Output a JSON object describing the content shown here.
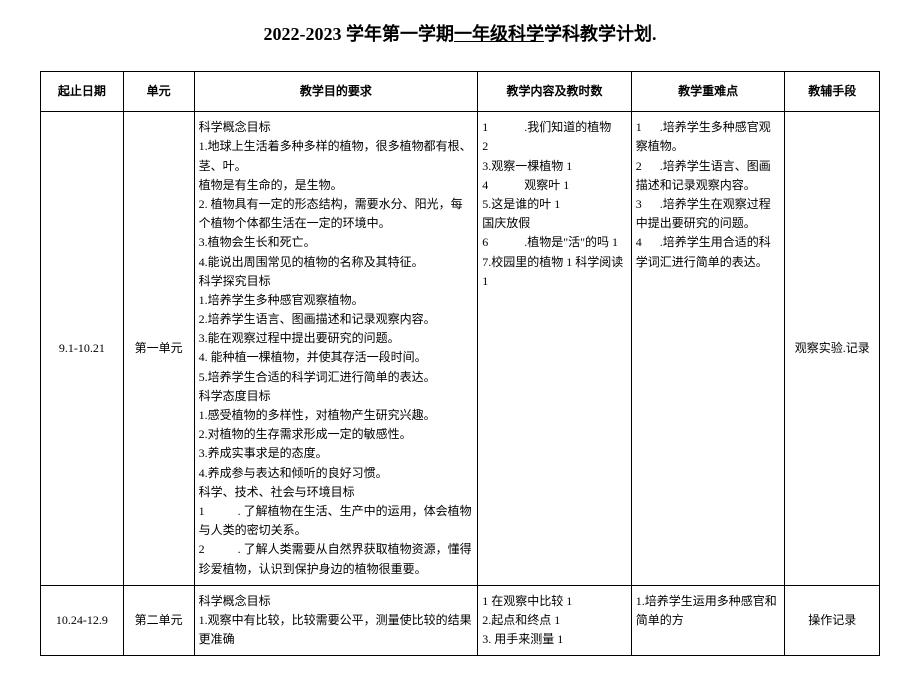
{
  "title": {
    "prefix": "2022-2023 学年第一学期",
    "underlined": "一年级科学",
    "suffix": "学科教学计划."
  },
  "headers": {
    "date": "起止日期",
    "unit": "单元",
    "objective": "教学目的要求",
    "content": "教学内容及教时数",
    "difficulty": "教学重难点",
    "method": "教辅手段"
  },
  "rows": [
    {
      "date": "9.1-10.21",
      "unit": "第一单元",
      "objective": "科学概念目标\n1.地球上生活着多种多样的植物，很多植物都有根、茎、叶。\n植物是有生命的，是生物。\n2. 植物具有一定的形态结构，需要水分、阳光，每个植物个体都生活在一定的环境中。\n3.植物会生长和死亡。\n4.能说出周围常见的植物的名称及其特征。\n科学探究目标\n1.培养学生多种感官观察植物。\n2.培养学生语言、图画描述和记录观察内容。\n3.能在观察过程中提出要研究的问题。\n4. 能种植一棵植物，并使其存活一段时间。\n5.培养学生合适的科学词汇进行简单的表达。\n科学态度目标\n1.感受植物的多样性，对植物产生研究兴趣。\n2.对植物的生存需求形成一定的敏感性。\n3.养成实事求是的态度。\n4.养成参与表达和倾听的良好习惯。\n科学、技术、社会与环境目标\n1           . 了解植物在生活、生产中的运用，体会植物与人类的密切关系。\n2           . 了解人类需要从自然界获取植物资源，懂得珍爱植物，认识到保护身边的植物很重要。",
      "content": "1            .我们知道的植物\n2\n3.观察一棵植物 1\n4            观察叶 1\n5.这是谁的叶 1\n国庆放假\n6            .植物是\"活\"的吗 1\n7.校园里的植物 1 科学阅读 1",
      "difficulty": "1      .培养学生多种感官观察植物。\n2      .培养学生语言、图画描述和记录观察内容。\n3      .培养学生在观察过程中提出要研究的问题。\n4      .培养学生用合适的科学词汇进行简单的表达。",
      "method": "观察实验.记录"
    },
    {
      "date": "10.24-12.9",
      "unit": "第二单元",
      "objective": "科学概念目标\n1.观察中有比较，比较需要公平，测量使比较的结果更准确",
      "content": "1 在观察中比较 1\n2.起点和终点 1\n3. 用手来测量 1",
      "difficulty": "1.培养学生运用多种感官和简单的方",
      "method": "操作记录"
    }
  ]
}
